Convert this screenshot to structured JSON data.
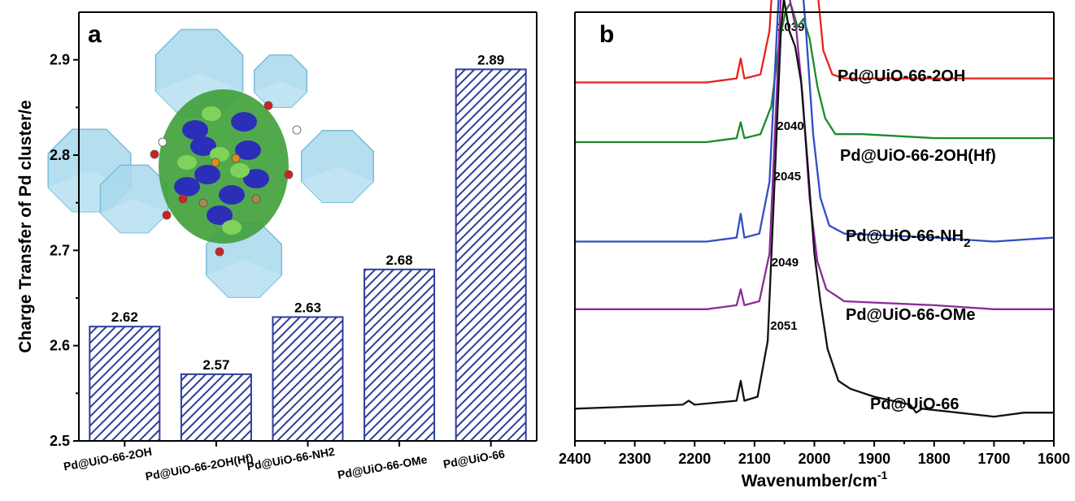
{
  "chart_data": [
    {
      "type": "bar",
      "panel": "a",
      "categories": [
        "Pd@UiO-66-2OH",
        "Pd@UiO-66-2OH(Hf)",
        "Pd@UiO-66-NH2",
        "Pd@UiO-66-OMe",
        "Pd@UiO-66"
      ],
      "values": [
        2.62,
        2.57,
        2.63,
        2.68,
        2.89
      ],
      "value_labels": [
        "2.62",
        "2.57",
        "2.63",
        "2.68",
        "2.89"
      ],
      "ylabel": "Charge Transfer of Pd cluster/e",
      "ylim": [
        2.5,
        2.95
      ],
      "yticks": [
        2.5,
        2.6,
        2.7,
        2.8,
        2.9
      ],
      "bar_fill": "diagonal-hatch",
      "bar_color": "#2f3d9c",
      "inset": "polyhedral-structure-with-charge-density-isosurface"
    },
    {
      "type": "line",
      "panel": "b",
      "xlabel": "Wavenumber/cm",
      "xlabel_superscript": "-1",
      "xlim": [
        2400,
        1600
      ],
      "xticks": [
        2400,
        2300,
        2200,
        2100,
        2000,
        1900,
        1800,
        1700,
        1600
      ],
      "y_axis_shown": false,
      "series": [
        {
          "name": "Pd@UiO-66-2OH",
          "color": "#e8221d",
          "baseline": 0.85,
          "peak_height": 0.68,
          "peak": "2039",
          "points": [
            [
              2400,
              0.85
            ],
            [
              2180,
              0.85
            ],
            [
              2130,
              0.86
            ],
            [
              2123,
              0.91
            ],
            [
              2117,
              0.86
            ],
            [
              2090,
              0.87
            ],
            [
              2075,
              0.98
            ],
            [
              2062,
              1.3
            ],
            [
              2052,
              1.48
            ],
            [
              2040,
              1.53
            ],
            [
              2028,
              1.44
            ],
            [
              2018,
              1.46
            ],
            [
              2008,
              1.36
            ],
            [
              1996,
              1.1
            ],
            [
              1985,
              0.93
            ],
            [
              1970,
              0.87
            ],
            [
              1950,
              0.86
            ],
            [
              1800,
              0.86
            ],
            [
              1650,
              0.86
            ],
            [
              1600,
              0.86
            ]
          ]
        },
        {
          "name": "Pd@UiO-66-2OH(Hf)",
          "color": "#1b8a2b",
          "baseline": 0.7,
          "peak_height": 0.35,
          "peak": "2040",
          "points": [
            [
              2400,
              0.7
            ],
            [
              2180,
              0.7
            ],
            [
              2130,
              0.71
            ],
            [
              2123,
              0.75
            ],
            [
              2117,
              0.71
            ],
            [
              2090,
              0.72
            ],
            [
              2072,
              0.79
            ],
            [
              2058,
              0.96
            ],
            [
              2048,
              1.03
            ],
            [
              2040,
              1.05
            ],
            [
              2028,
              0.99
            ],
            [
              2018,
              1.01
            ],
            [
              2008,
              0.96
            ],
            [
              1995,
              0.84
            ],
            [
              1982,
              0.76
            ],
            [
              1965,
              0.72
            ],
            [
              1920,
              0.72
            ],
            [
              1800,
              0.71
            ],
            [
              1700,
              0.71
            ],
            [
              1600,
              0.71
            ]
          ]
        },
        {
          "name": "Pd@UiO-66-NH2",
          "color": "#2f4ec4",
          "baseline": 0.45,
          "peak_height": 0.89,
          "peak": "2045",
          "points": [
            [
              2400,
              0.45
            ],
            [
              2180,
              0.45
            ],
            [
              2130,
              0.46
            ],
            [
              2123,
              0.52
            ],
            [
              2117,
              0.46
            ],
            [
              2092,
              0.47
            ],
            [
              2075,
              0.6
            ],
            [
              2062,
              1.0
            ],
            [
              2052,
              1.28
            ],
            [
              2045,
              1.34
            ],
            [
              2036,
              1.3
            ],
            [
              2026,
              1.2
            ],
            [
              2014,
              0.98
            ],
            [
              2002,
              0.72
            ],
            [
              1990,
              0.56
            ],
            [
              1975,
              0.49
            ],
            [
              1950,
              0.47
            ],
            [
              1800,
              0.46
            ],
            [
              1700,
              0.45
            ],
            [
              1600,
              0.46
            ]
          ]
        },
        {
          "name": "Pd@UiO-66-OMe",
          "color": "#8d2a9c",
          "baseline": 0.28,
          "peak_height": 0.85,
          "peak": "2049",
          "points": [
            [
              2400,
              0.28
            ],
            [
              2180,
              0.28
            ],
            [
              2130,
              0.29
            ],
            [
              2123,
              0.33
            ],
            [
              2117,
              0.29
            ],
            [
              2092,
              0.3
            ],
            [
              2075,
              0.42
            ],
            [
              2063,
              0.82
            ],
            [
              2055,
              1.1
            ],
            [
              2049,
              1.13
            ],
            [
              2040,
              1.05
            ],
            [
              2030,
              0.98
            ],
            [
              2020,
              0.82
            ],
            [
              2008,
              0.56
            ],
            [
              1995,
              0.4
            ],
            [
              1980,
              0.33
            ],
            [
              1950,
              0.3
            ],
            [
              1800,
              0.29
            ],
            [
              1700,
              0.28
            ],
            [
              1600,
              0.28
            ]
          ]
        },
        {
          "name": "Pd@UiO-66",
          "color": "#111111",
          "baseline": 0.03,
          "peak_height": 1.03,
          "peak": "2051",
          "points": [
            [
              2400,
              0.03
            ],
            [
              2220,
              0.04
            ],
            [
              2210,
              0.05
            ],
            [
              2200,
              0.04
            ],
            [
              2130,
              0.05
            ],
            [
              2123,
              0.1
            ],
            [
              2117,
              0.05
            ],
            [
              2095,
              0.06
            ],
            [
              2078,
              0.2
            ],
            [
              2065,
              0.65
            ],
            [
              2056,
              0.98
            ],
            [
              2051,
              1.06
            ],
            [
              2042,
              0.98
            ],
            [
              2032,
              0.94
            ],
            [
              2022,
              0.85
            ],
            [
              2012,
              0.66
            ],
            [
              2000,
              0.42
            ],
            [
              1990,
              0.3
            ],
            [
              1978,
              0.18
            ],
            [
              1960,
              0.1
            ],
            [
              1940,
              0.08
            ],
            [
              1900,
              0.06
            ],
            [
              1840,
              0.04
            ],
            [
              1830,
              0.02
            ],
            [
              1820,
              0.03
            ],
            [
              1760,
              0.02
            ],
            [
              1700,
              0.01
            ],
            [
              1650,
              0.02
            ],
            [
              1600,
              0.02
            ]
          ]
        }
      ]
    }
  ]
}
